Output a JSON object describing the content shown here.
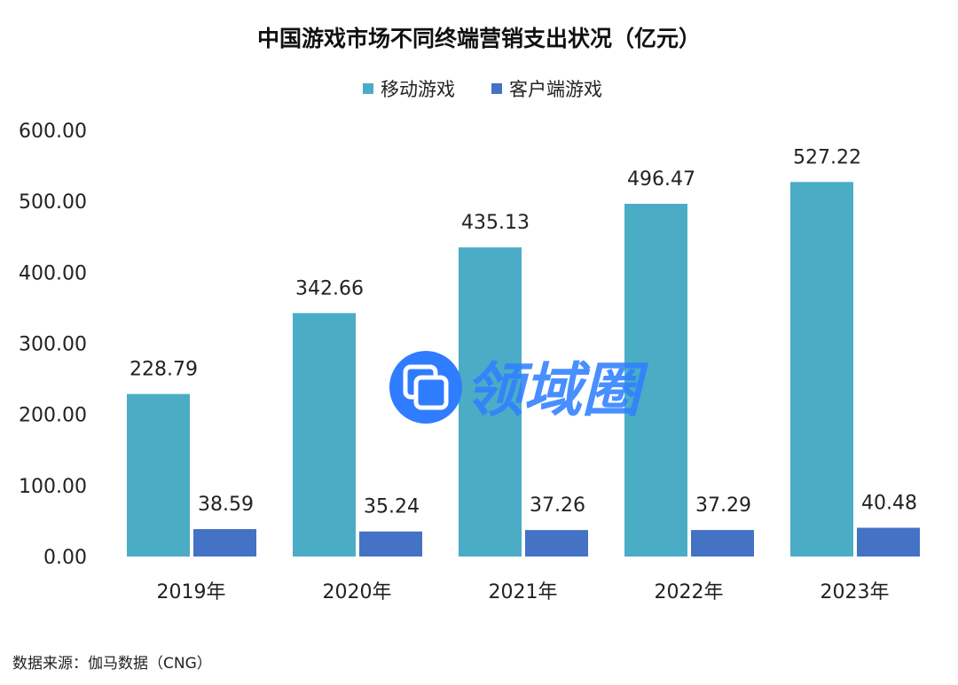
{
  "chart_data": {
    "type": "bar",
    "title": "中国游戏市场不同终端营销支出状况（亿元）",
    "categories": [
      "2019年",
      "2020年",
      "2021年",
      "2022年",
      "2023年"
    ],
    "series": [
      {
        "name": "移动游戏",
        "color": "#4BACC6",
        "values": [
          228.79,
          342.66,
          435.13,
          496.47,
          527.22
        ],
        "labels": [
          "228.79",
          "342.66",
          "435.13",
          "496.47",
          "527.22"
        ]
      },
      {
        "name": "客户端游戏",
        "color": "#4472C4",
        "values": [
          38.59,
          35.24,
          37.26,
          37.29,
          40.48
        ],
        "labels": [
          "38.59",
          "35.24",
          "37.26",
          "37.29",
          "40.48"
        ]
      }
    ],
    "ylim": [
      0,
      600
    ],
    "yticks": [
      "0.00",
      "100.00",
      "200.00",
      "300.00",
      "400.00",
      "500.00",
      "600.00"
    ],
    "legend_position": "top-center",
    "grid": false,
    "source": "数据来源：伽马数据（CNG）"
  },
  "watermark": {
    "text": "领域圈",
    "icon": "overlapping-squares-icon",
    "color": "#2F80FF"
  }
}
